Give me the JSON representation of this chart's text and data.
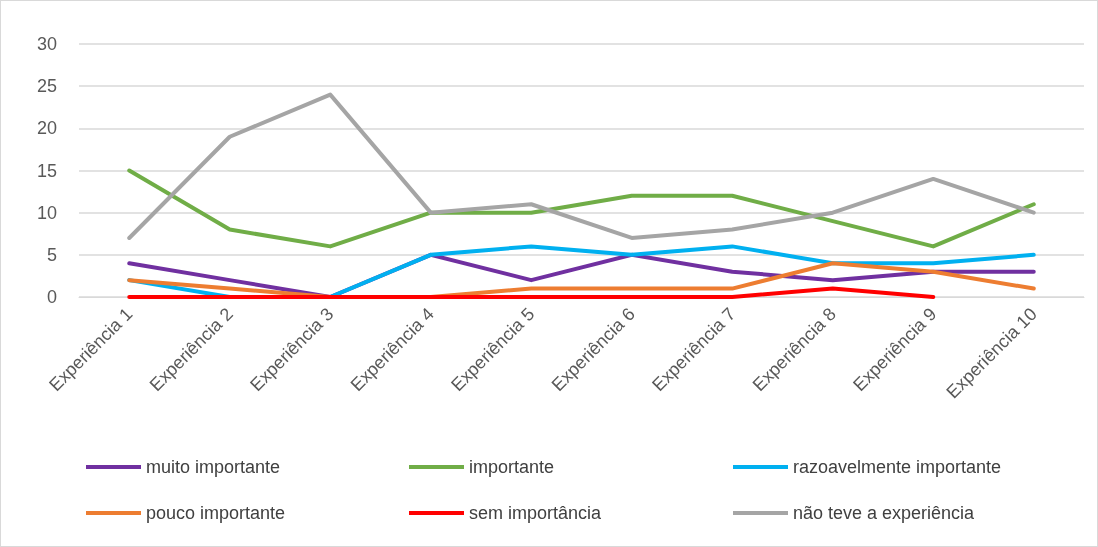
{
  "chart_data": {
    "type": "line",
    "categories": [
      "Experiência 1",
      "Experiência 2",
      "Experiência 3",
      "Experiência 4",
      "Experiência 5",
      "Experiência 6",
      "Experiência 7",
      "Experiência 8",
      "Experiência 9",
      "Experiência 10"
    ],
    "series": [
      {
        "name": "muito importante",
        "color": "#7030a0",
        "values": [
          4,
          2,
          0,
          5,
          2,
          5,
          3,
          2,
          3,
          3
        ]
      },
      {
        "name": "importante",
        "color": "#70ad47",
        "values": [
          15,
          8,
          6,
          10,
          10,
          12,
          12,
          9,
          6,
          11
        ]
      },
      {
        "name": "razoavelmente importante",
        "color": "#00b0f0",
        "values": [
          2,
          0,
          0,
          5,
          6,
          5,
          6,
          4,
          4,
          5
        ]
      },
      {
        "name": "pouco importante",
        "color": "#ed7d31",
        "values": [
          2,
          1,
          0,
          0,
          1,
          1,
          1,
          4,
          3,
          1
        ]
      },
      {
        "name": "sem importância",
        "color": "#ff0000",
        "values": [
          0,
          0,
          0,
          0,
          0,
          0,
          0,
          1,
          0,
          null
        ]
      },
      {
        "name": "não teve a experiência",
        "color": "#a5a5a5",
        "values": [
          7,
          19,
          24,
          10,
          11,
          7,
          8,
          10,
          14,
          10
        ]
      }
    ],
    "ylim": [
      0,
      30
    ],
    "yticks": [
      0,
      5,
      10,
      15,
      20,
      25,
      30
    ],
    "grid": "y",
    "legend": "bottom",
    "marker": "none",
    "line_style": "solid"
  }
}
